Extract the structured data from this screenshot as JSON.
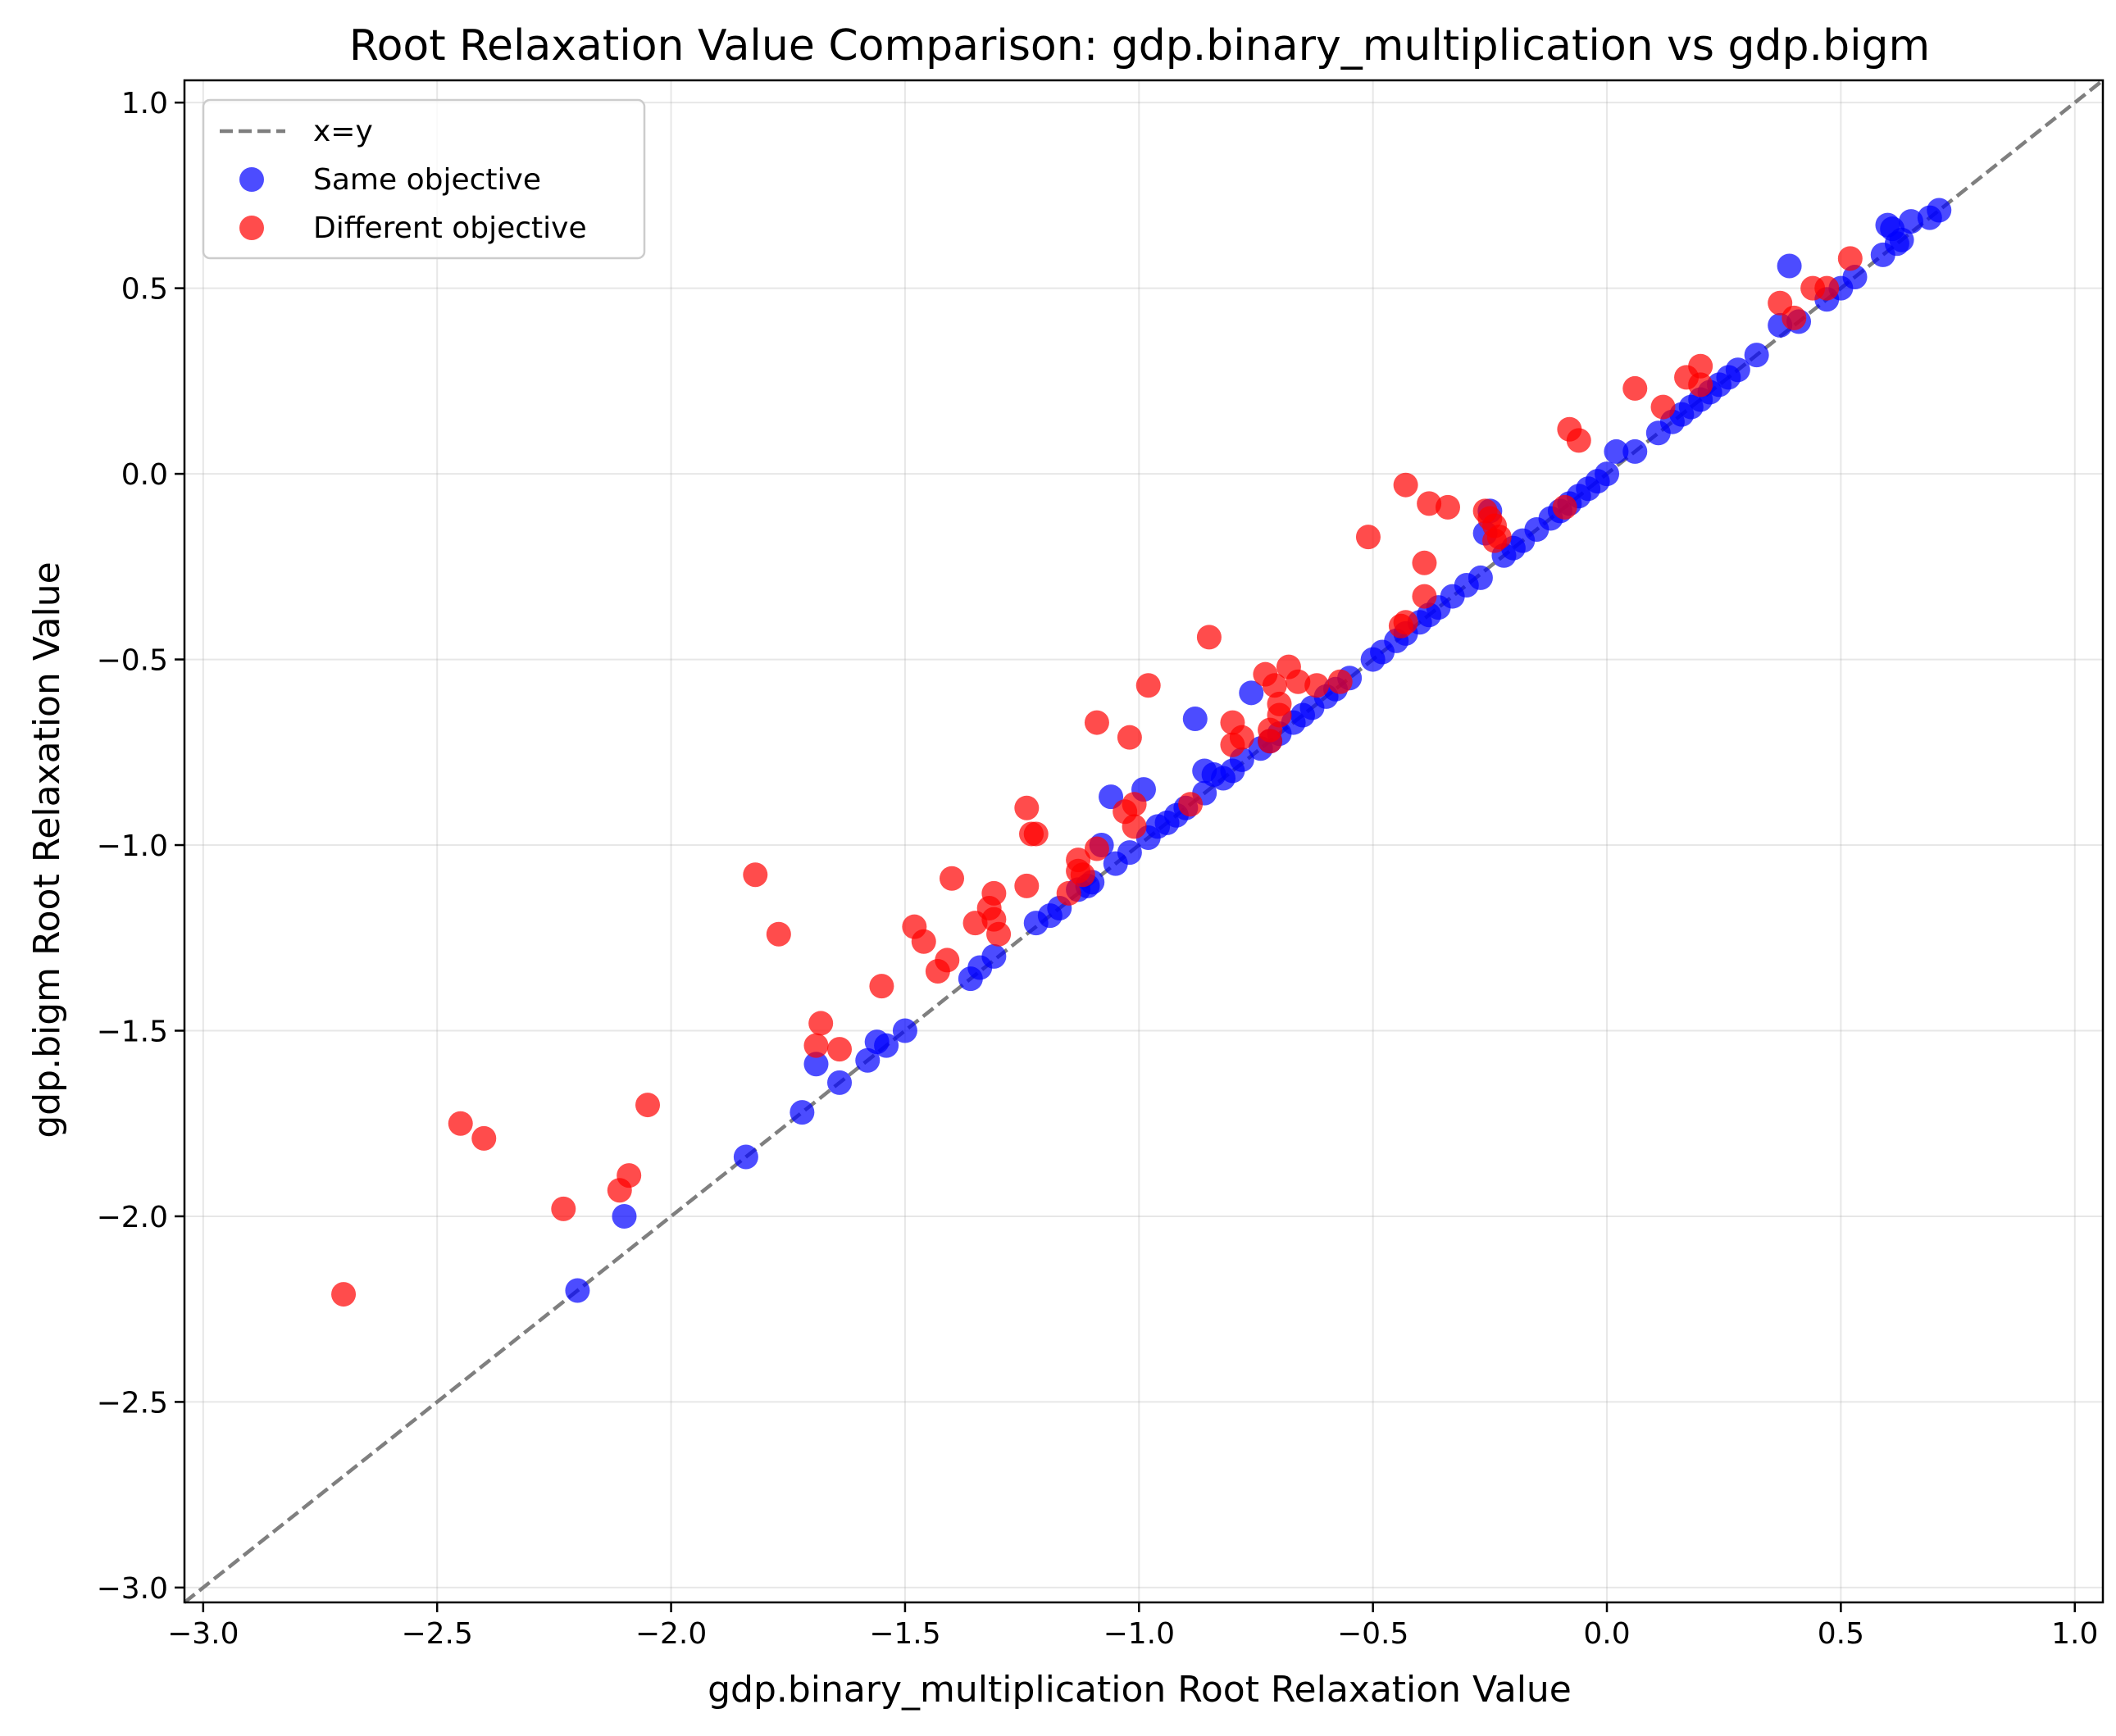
{
  "chart_data": {
    "type": "scatter",
    "title": "Root Relaxation Value Comparison: gdp.binary_multiplication vs gdp.bigm",
    "xlabel": "gdp.binary_multiplication Root Relaxation Value",
    "ylabel": "gdp.bigm Root Relaxation Value",
    "xlim": [
      -3.04,
      1.06
    ],
    "ylim": [
      -3.04,
      1.06
    ],
    "xticks": [
      -3.0,
      -2.5,
      -2.0,
      -1.5,
      -1.0,
      -0.5,
      0.0,
      0.5,
      1.0
    ],
    "yticks": [
      -3.0,
      -2.5,
      -2.0,
      -1.5,
      -1.0,
      -0.5,
      0.0,
      0.5,
      1.0
    ],
    "xtick_labels": [
      "−3.0",
      "−2.5",
      "−2.0",
      "−1.5",
      "−1.0",
      "−0.5",
      "0.0",
      "0.5",
      "1.0"
    ],
    "ytick_labels": [
      "−3.0",
      "−2.5",
      "−2.0",
      "−1.5",
      "−1.0",
      "−0.5",
      "0.0",
      "0.5",
      "1.0"
    ],
    "grid": true,
    "legend_position": "top-left",
    "reference_line": {
      "name": "x=y",
      "style": "dashed",
      "color": "#7f7f7f"
    },
    "series": [
      {
        "name": "Same objective",
        "color": "#0000ff",
        "points": [
          [
            -2.2,
            -2.2
          ],
          [
            -2.1,
            -2.0
          ],
          [
            -1.84,
            -1.84
          ],
          [
            -1.72,
            -1.72
          ],
          [
            -1.69,
            -1.59
          ],
          [
            -1.64,
            -1.64
          ],
          [
            -1.58,
            -1.58
          ],
          [
            -1.56,
            -1.53
          ],
          [
            -1.54,
            -1.54
          ],
          [
            -1.5,
            -1.5
          ],
          [
            -1.36,
            -1.36
          ],
          [
            -1.34,
            -1.33
          ],
          [
            -1.31,
            -1.3
          ],
          [
            -1.22,
            -1.21
          ],
          [
            -1.19,
            -1.19
          ],
          [
            -1.17,
            -1.17
          ],
          [
            -1.13,
            -1.12
          ],
          [
            -1.11,
            -1.11
          ],
          [
            -1.1,
            -1.1
          ],
          [
            -1.08,
            -1.0
          ],
          [
            -1.06,
            -0.87
          ],
          [
            -1.05,
            -1.05
          ],
          [
            -1.02,
            -1.02
          ],
          [
            -0.99,
            -0.85
          ],
          [
            -0.98,
            -0.98
          ],
          [
            -0.96,
            -0.95
          ],
          [
            -0.94,
            -0.94
          ],
          [
            -0.92,
            -0.92
          ],
          [
            -0.9,
            -0.9
          ],
          [
            -0.88,
            -0.66
          ],
          [
            -0.86,
            -0.86
          ],
          [
            -0.86,
            -0.8
          ],
          [
            -0.84,
            -0.81
          ],
          [
            -0.82,
            -0.82
          ],
          [
            -0.8,
            -0.8
          ],
          [
            -0.78,
            -0.77
          ],
          [
            -0.76,
            -0.59
          ],
          [
            -0.74,
            -0.74
          ],
          [
            -0.72,
            -0.72
          ],
          [
            -0.7,
            -0.7
          ],
          [
            -0.67,
            -0.67
          ],
          [
            -0.65,
            -0.65
          ],
          [
            -0.63,
            -0.63
          ],
          [
            -0.6,
            -0.6
          ],
          [
            -0.58,
            -0.58
          ],
          [
            -0.55,
            -0.55
          ],
          [
            -0.5,
            -0.5
          ],
          [
            -0.48,
            -0.48
          ],
          [
            -0.45,
            -0.45
          ],
          [
            -0.43,
            -0.43
          ],
          [
            -0.4,
            -0.4
          ],
          [
            -0.38,
            -0.38
          ],
          [
            -0.36,
            -0.36
          ],
          [
            -0.33,
            -0.33
          ],
          [
            -0.3,
            -0.3
          ],
          [
            -0.27,
            -0.28
          ],
          [
            -0.26,
            -0.16
          ],
          [
            -0.25,
            -0.1
          ],
          [
            -0.22,
            -0.22
          ],
          [
            -0.2,
            -0.2
          ],
          [
            -0.18,
            -0.18
          ],
          [
            -0.15,
            -0.15
          ],
          [
            -0.12,
            -0.12
          ],
          [
            -0.1,
            -0.1
          ],
          [
            -0.08,
            -0.08
          ],
          [
            -0.06,
            -0.06
          ],
          [
            -0.04,
            -0.04
          ],
          [
            -0.02,
            -0.02
          ],
          [
            0.0,
            0.0
          ],
          [
            0.02,
            0.06
          ],
          [
            0.06,
            0.06
          ],
          [
            0.11,
            0.11
          ],
          [
            0.14,
            0.14
          ],
          [
            0.16,
            0.16
          ],
          [
            0.18,
            0.18
          ],
          [
            0.2,
            0.2
          ],
          [
            0.22,
            0.22
          ],
          [
            0.24,
            0.24
          ],
          [
            0.26,
            0.26
          ],
          [
            0.28,
            0.28
          ],
          [
            0.32,
            0.32
          ],
          [
            0.37,
            0.4
          ],
          [
            0.39,
            0.56
          ],
          [
            0.41,
            0.41
          ],
          [
            0.47,
            0.47
          ],
          [
            0.5,
            0.5
          ],
          [
            0.53,
            0.53
          ],
          [
            0.59,
            0.59
          ],
          [
            0.6,
            0.67
          ],
          [
            0.61,
            0.66
          ],
          [
            0.62,
            0.62
          ],
          [
            0.63,
            0.63
          ],
          [
            0.65,
            0.68
          ],
          [
            0.69,
            0.69
          ],
          [
            0.71,
            0.71
          ]
        ]
      },
      {
        "name": "Different objective",
        "color": "#ff0000",
        "points": [
          [
            -2.7,
            -2.21
          ],
          [
            -2.45,
            -1.75
          ],
          [
            -2.4,
            -1.79
          ],
          [
            -2.23,
            -1.98
          ],
          [
            -2.11,
            -1.93
          ],
          [
            -2.09,
            -1.89
          ],
          [
            -2.05,
            -1.7
          ],
          [
            -1.82,
            -1.08
          ],
          [
            -1.77,
            -1.24
          ],
          [
            -1.68,
            -1.48
          ],
          [
            -1.69,
            -1.54
          ],
          [
            -1.64,
            -1.55
          ],
          [
            -1.55,
            -1.38
          ],
          [
            -1.48,
            -1.22
          ],
          [
            -1.46,
            -1.26
          ],
          [
            -1.43,
            -1.34
          ],
          [
            -1.41,
            -1.31
          ],
          [
            -1.4,
            -1.09
          ],
          [
            -1.35,
            -1.21
          ],
          [
            -1.32,
            -1.17
          ],
          [
            -1.31,
            -1.13
          ],
          [
            -1.31,
            -1.2
          ],
          [
            -1.3,
            -1.24
          ],
          [
            -1.24,
            -1.11
          ],
          [
            -1.24,
            -0.9
          ],
          [
            -1.23,
            -0.97
          ],
          [
            -1.22,
            -0.97
          ],
          [
            -1.15,
            -1.13
          ],
          [
            -1.13,
            -1.04
          ],
          [
            -1.13,
            -1.07
          ],
          [
            -1.12,
            -1.08
          ],
          [
            -1.09,
            -1.01
          ],
          [
            -1.09,
            -0.67
          ],
          [
            -1.03,
            -0.91
          ],
          [
            -1.02,
            -0.71
          ],
          [
            -1.01,
            -0.89
          ],
          [
            -1.01,
            -0.95
          ],
          [
            -0.98,
            -0.57
          ],
          [
            -0.89,
            -0.89
          ],
          [
            -0.85,
            -0.44
          ],
          [
            -0.8,
            -0.67
          ],
          [
            -0.8,
            -0.73
          ],
          [
            -0.78,
            -0.71
          ],
          [
            -0.73,
            -0.54
          ],
          [
            -0.72,
            -0.69
          ],
          [
            -0.72,
            -0.72
          ],
          [
            -0.71,
            -0.57
          ],
          [
            -0.7,
            -0.62
          ],
          [
            -0.7,
            -0.65
          ],
          [
            -0.68,
            -0.52
          ],
          [
            -0.66,
            -0.56
          ],
          [
            -0.62,
            -0.57
          ],
          [
            -0.57,
            -0.56
          ],
          [
            -0.51,
            -0.17
          ],
          [
            -0.44,
            -0.41
          ],
          [
            -0.43,
            -0.4
          ],
          [
            -0.43,
            -0.03
          ],
          [
            -0.39,
            -0.24
          ],
          [
            -0.39,
            -0.33
          ],
          [
            -0.38,
            -0.08
          ],
          [
            -0.34,
            -0.09
          ],
          [
            -0.26,
            -0.1
          ],
          [
            -0.25,
            -0.12
          ],
          [
            -0.24,
            -0.14
          ],
          [
            -0.24,
            -0.18
          ],
          [
            -0.23,
            -0.17
          ],
          [
            -0.09,
            -0.09
          ],
          [
            -0.08,
            0.12
          ],
          [
            -0.06,
            0.09
          ],
          [
            0.06,
            0.23
          ],
          [
            0.12,
            0.18
          ],
          [
            0.17,
            0.26
          ],
          [
            0.2,
            0.24
          ],
          [
            0.2,
            0.29
          ],
          [
            0.37,
            0.46
          ],
          [
            0.4,
            0.42
          ],
          [
            0.44,
            0.5
          ],
          [
            0.47,
            0.5
          ],
          [
            0.52,
            0.58
          ]
        ]
      }
    ]
  }
}
